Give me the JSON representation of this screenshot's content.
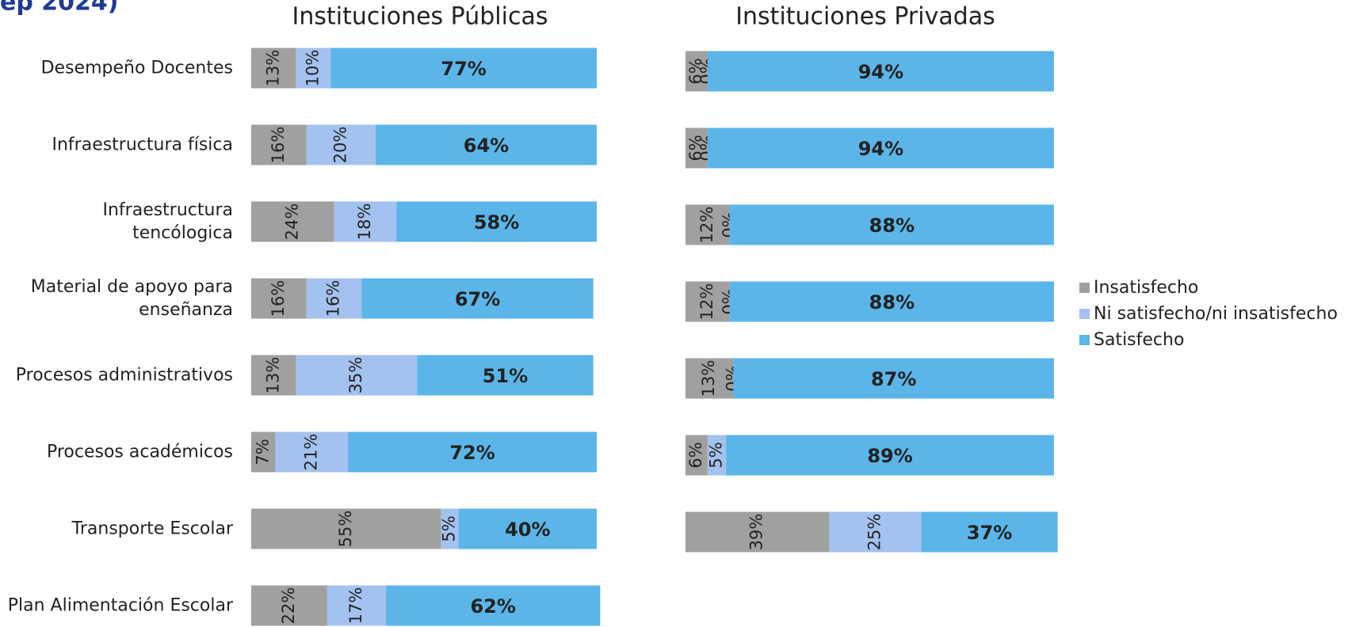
{
  "page_title": "ep 2024)",
  "legend": "right",
  "chart_data": [
    {
      "type": "stacked-bar",
      "orientation": "horizontal",
      "title": "Instituciones Públicas",
      "categories": [
        "Desempeño Docentes",
        "Infraestructura física",
        "Infraestructura tencólogica",
        "Material de apoyo para enseñanza",
        "Procesos administrativos",
        "Procesos académicos",
        "Transporte Escolar",
        "Plan Alimentación Escolar"
      ],
      "xlim": [
        0,
        100
      ],
      "series": [
        {
          "name": "Insatisfecho",
          "color": "#a0a0a0",
          "values": [
            13,
            16,
            24,
            16,
            13,
            7,
            55,
            22
          ],
          "value_labels": [
            "13%",
            "16%",
            "24%",
            "16%",
            "13%",
            "7%",
            "55%",
            "22%"
          ]
        },
        {
          "name": "Ni satisfecho/ni insatisfecho",
          "color": "#a4c2ef",
          "values": [
            10,
            20,
            18,
            16,
            35,
            21,
            5,
            17
          ],
          "value_labels": [
            "10%",
            "20%",
            "18%",
            "16%",
            "35%",
            "21%",
            "5%",
            "17%"
          ]
        },
        {
          "name": "Satisfecho",
          "color": "#5bb5e8",
          "values": [
            77,
            64,
            58,
            67,
            51,
            72,
            40,
            62
          ],
          "value_labels": [
            "77%",
            "64%",
            "58%",
            "67%",
            "51%",
            "72%",
            "40%",
            "62%"
          ]
        }
      ]
    },
    {
      "type": "stacked-bar",
      "orientation": "horizontal",
      "title": "Instituciones Privadas",
      "xlim": [
        0,
        100
      ],
      "series": [
        {
          "name": "Insatisfecho",
          "color": "#a0a0a0",
          "values": [
            6,
            6,
            12,
            12,
            13,
            6,
            39
          ],
          "value_labels": [
            "6%",
            "6%",
            "12%",
            "12%",
            "13%",
            "6%",
            "39%"
          ]
        },
        {
          "name": "Ni satisfecho/ni insatisfecho",
          "color": "#a4c2ef",
          "values": [
            0,
            0,
            0,
            0,
            0,
            5,
            25
          ],
          "value_labels": [
            "0%",
            "0%",
            "0%",
            "0%",
            "0%",
            "5%",
            "25%"
          ]
        },
        {
          "name": "Satisfecho",
          "color": "#5bb5e8",
          "values": [
            94,
            94,
            88,
            88,
            87,
            89,
            37
          ],
          "value_labels": [
            "94%",
            "94%",
            "88%",
            "88%",
            "87%",
            "89%",
            "37%"
          ]
        }
      ]
    }
  ]
}
